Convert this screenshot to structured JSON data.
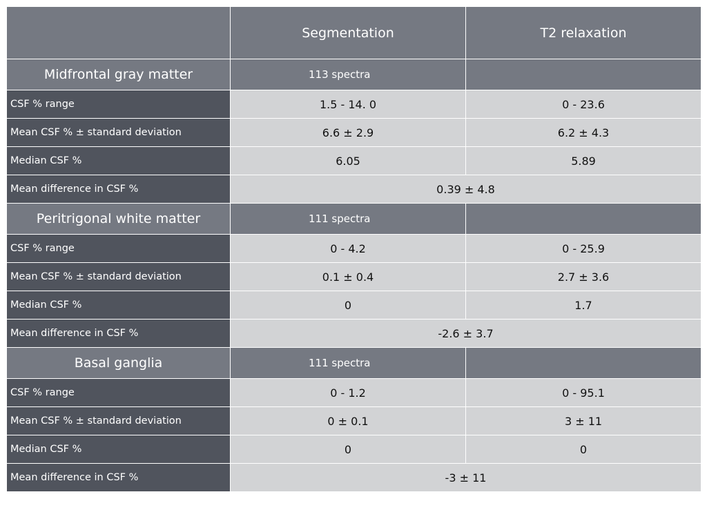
{
  "header": {
    "corner": "",
    "col1": "Segmentation",
    "col2": "T2 relaxation"
  },
  "sections": [
    {
      "title": "Midfrontal gray matter",
      "spectra": "113 spectra",
      "rows": [
        {
          "label": "CSF % range",
          "seg": "1.5 - 14. 0",
          "t2": "0 - 23.6"
        },
        {
          "label": "Mean CSF % ± standard deviation",
          "seg": "6.6 ± 2.9",
          "t2": "6.2 ± 4.3"
        },
        {
          "label": "Median CSF %",
          "seg": "6.05",
          "t2": "5.89"
        }
      ],
      "diff_label": "Mean difference in CSF %",
      "diff_value": "0.39 ± 4.8"
    },
    {
      "title": "Peritrigonal white matter",
      "spectra": "111 spectra",
      "rows": [
        {
          "label": "CSF % range",
          "seg": "0 - 4.2",
          "t2": "0 - 25.9"
        },
        {
          "label": "Mean CSF % ± standard deviation",
          "seg": "0.1 ± 0.4",
          "t2": "2.7 ± 3.6"
        },
        {
          "label": "Median CSF %",
          "seg": "0",
          "t2": "1.7"
        }
      ],
      "diff_label": "Mean difference in CSF %",
      "diff_value": "-2.6 ± 3.7"
    },
    {
      "title": "Basal ganglia",
      "spectra": "111 spectra",
      "rows": [
        {
          "label": "CSF % range",
          "seg": "0 - 1.2",
          "t2": "0 - 95.1"
        },
        {
          "label": "Mean CSF % ± standard deviation",
          "seg": "0 ± 0.1",
          "t2": "3 ± 11"
        },
        {
          "label": "Median CSF %",
          "seg": "0",
          "t2": "0"
        }
      ],
      "diff_label": "Mean difference in CSF %",
      "diff_value": "-3 ± 11"
    }
  ]
}
